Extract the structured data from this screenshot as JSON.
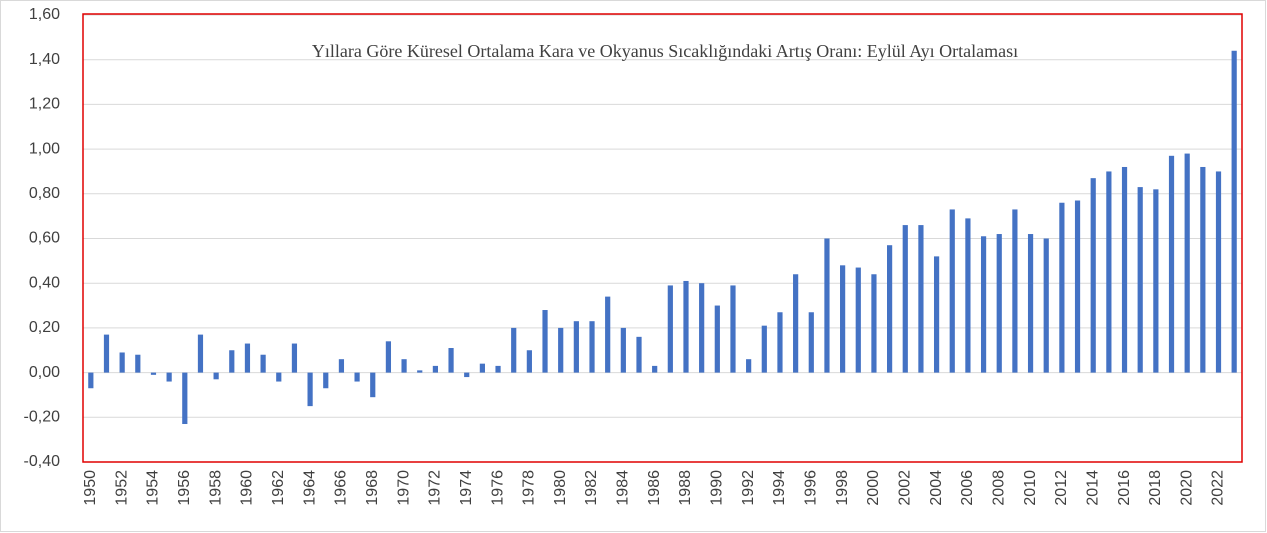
{
  "chart_data": {
    "type": "bar",
    "title": "Yıllara Göre Küresel Ortalama Kara ve Okyanus Sıcaklığındaki Artış Oranı: Eylül Ayı Ortalaması",
    "categories": [
      "1950",
      null,
      "1952",
      null,
      "1954",
      null,
      "1956",
      null,
      "1958",
      null,
      "1960",
      null,
      "1962",
      null,
      "1964",
      null,
      "1966",
      null,
      "1968",
      null,
      "1970",
      null,
      "1972",
      null,
      "1974",
      null,
      "1976",
      null,
      "1978",
      null,
      "1980",
      null,
      "1982",
      null,
      "1984",
      null,
      "1986",
      null,
      "1988",
      null,
      "1990",
      null,
      "1992",
      null,
      "1994",
      null,
      "1996",
      null,
      "1998",
      null,
      "2000",
      null,
      "2002",
      null,
      "2004",
      null,
      "2006",
      null,
      "2008",
      null,
      "2010",
      null,
      "2012",
      null,
      "2014",
      null,
      "2016",
      null,
      "2018",
      null,
      "2020",
      null,
      "2022",
      null
    ],
    "values": [
      -0.07,
      0.17,
      0.09,
      0.08,
      -0.01,
      -0.04,
      -0.23,
      0.17,
      -0.03,
      0.1,
      0.13,
      0.08,
      -0.04,
      0.13,
      -0.15,
      -0.07,
      0.06,
      -0.04,
      -0.11,
      0.14,
      0.06,
      0.01,
      0.03,
      0.11,
      -0.02,
      0.04,
      0.03,
      0.2,
      0.1,
      0.28,
      0.2,
      0.23,
      0.23,
      0.34,
      0.2,
      0.16,
      0.03,
      0.39,
      0.41,
      0.4,
      0.3,
      0.39,
      0.06,
      0.21,
      0.27,
      0.44,
      0.27,
      0.6,
      0.48,
      0.47,
      0.44,
      0.57,
      0.66,
      0.66,
      0.52,
      0.73,
      0.69,
      0.61,
      0.62,
      0.73,
      0.62,
      0.6,
      0.76,
      0.77,
      0.87,
      0.9,
      0.92,
      0.83,
      0.82,
      0.97,
      0.98,
      0.92,
      0.9,
      1.44
    ],
    "color": "#4472c4",
    "ylim": [
      -0.4,
      1.6
    ],
    "yticks": [
      {
        "value": -0.4,
        "label": "-0,40"
      },
      {
        "value": -0.2,
        "label": "-0,20"
      },
      {
        "value": 0,
        "label": "0,00"
      },
      {
        "value": 0.2,
        "label": "0,20"
      },
      {
        "value": 0.4,
        "label": "0,40"
      },
      {
        "value": 0.6,
        "label": "0,60"
      },
      {
        "value": 0.8,
        "label": "0,80"
      },
      {
        "value": 1.0,
        "label": "1,00"
      },
      {
        "value": 1.2,
        "label": "1,20"
      },
      {
        "value": 1.4,
        "label": "1,40"
      },
      {
        "value": 1.6,
        "label": "1,60"
      }
    ],
    "grid": true
  }
}
